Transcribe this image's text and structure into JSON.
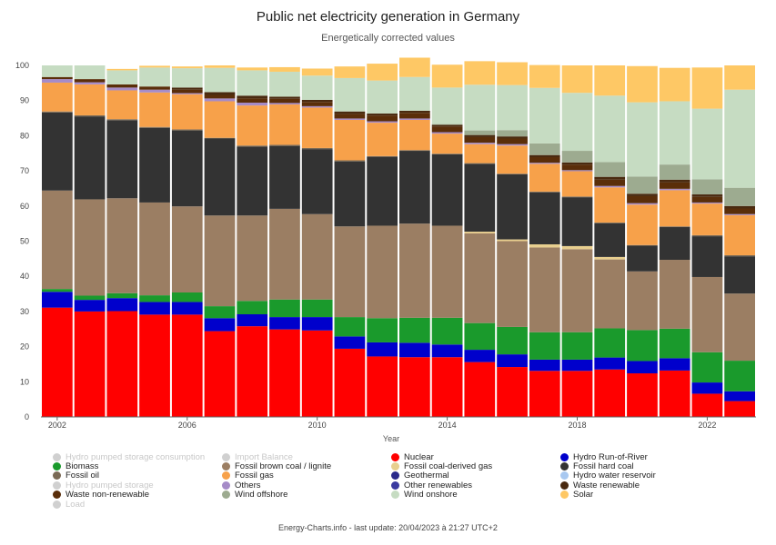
{
  "title": "Public net electricity generation in Germany",
  "subtitle": "Energetically corrected values",
  "footer": "Energy-Charts.info - last update: 20/04/2023 à 21:27 UTC+2",
  "chart_data": {
    "type": "bar",
    "stacked": true,
    "title": "Public net electricity generation in Germany",
    "subtitle": "Energetically corrected values",
    "xlabel": "Year",
    "ylabel": "",
    "ylim": [
      0,
      100
    ],
    "yticks": [
      0,
      10,
      20,
      30,
      40,
      50,
      60,
      70,
      80,
      90,
      100
    ],
    "grid": false,
    "legend_position": "bottom",
    "categories": [
      "2002",
      "2003",
      "2004",
      "2005",
      "2006",
      "2007",
      "2008",
      "2009",
      "2010",
      "2011",
      "2012",
      "2013",
      "2014",
      "2015",
      "2016",
      "2017",
      "2018",
      "2019",
      "2020",
      "2021",
      "2022",
      "2023"
    ],
    "xtick_labels": [
      "2002",
      "2006",
      "2010",
      "2014",
      "2018",
      "2022"
    ],
    "series": [
      {
        "name": "Nuclear",
        "color": "#ff0000",
        "values": [
          31.1,
          30.0,
          30.1,
          29.1,
          29.1,
          24.4,
          25.8,
          24.9,
          24.6,
          19.4,
          17.2,
          17.0,
          17.0,
          15.6,
          14.2,
          13.1,
          13.1,
          13.5,
          12.4,
          13.2,
          6.6,
          4.5
        ]
      },
      {
        "name": "Hydro Run-of-River",
        "color": "#0000cc",
        "values": [
          4.5,
          3.3,
          3.7,
          3.6,
          3.6,
          3.7,
          3.4,
          3.5,
          3.8,
          3.5,
          4.0,
          4.1,
          3.6,
          3.5,
          3.6,
          3.2,
          3.2,
          3.4,
          3.5,
          3.5,
          3.2,
          2.8
        ]
      },
      {
        "name": "Biomass",
        "color": "#1a9a2c",
        "values": [
          0.8,
          1.2,
          1.4,
          1.9,
          2.7,
          3.4,
          3.8,
          5.0,
          5.0,
          5.5,
          6.9,
          7.1,
          7.6,
          7.6,
          7.8,
          7.8,
          7.8,
          8.3,
          8.8,
          8.4,
          8.6,
          8.7
        ]
      },
      {
        "name": "Fossil brown coal / lignite",
        "color": "#9b7e63",
        "values": [
          28.0,
          27.4,
          27.0,
          26.4,
          24.5,
          25.8,
          24.3,
          25.8,
          24.3,
          25.8,
          26.3,
          26.8,
          26.2,
          25.5,
          24.4,
          24.1,
          23.6,
          19.6,
          16.7,
          19.6,
          21.4,
          19.1
        ]
      },
      {
        "name": "Fossil coal-derived gas",
        "color": "#e8cf8f",
        "values": [
          0,
          0,
          0,
          0,
          0,
          0,
          0,
          0,
          0,
          0,
          0,
          0,
          0,
          0.5,
          0.5,
          0.9,
          0.9,
          0.7,
          0,
          0,
          0,
          0
        ]
      },
      {
        "name": "Fossil hard coal",
        "color": "#333333",
        "values": [
          22.2,
          23.6,
          22.2,
          21.2,
          21.6,
          21.9,
          19.6,
          17.9,
          18.5,
          18.5,
          19.6,
          20.7,
          20.3,
          19.3,
          18.5,
          14.8,
          13.9,
          9.6,
          7.3,
          9.3,
          11.6,
          10.6
        ]
      },
      {
        "name": "Fossil oil",
        "color": "#7a6a55",
        "values": [
          0.3,
          0.3,
          0.3,
          0.3,
          0.3,
          0.2,
          0.3,
          0.3,
          0.3,
          0.3,
          0.2,
          0.2,
          0.2,
          0.2,
          0.2,
          0.2,
          0.2,
          0.2,
          0.2,
          0.2,
          0.3,
          0.3
        ]
      },
      {
        "name": "Fossil gas",
        "color": "#f7a14a",
        "values": [
          8.2,
          8.8,
          8.2,
          9.8,
          10.0,
          10.4,
          11.4,
          11.5,
          11.5,
          11.5,
          9.5,
          8.6,
          5.7,
          5.4,
          8.0,
          7.9,
          7.2,
          10.0,
          11.5,
          10.3,
          9.0,
          11.4
        ]
      },
      {
        "name": "Geothermal",
        "color": "#2a2a8a",
        "values": [
          0,
          0,
          0,
          0,
          0,
          0,
          0,
          0,
          0,
          0,
          0,
          0,
          0,
          0,
          0,
          0,
          0,
          0,
          0,
          0,
          0,
          0
        ]
      },
      {
        "name": "Others",
        "color": "#a58bc8",
        "values": [
          1.0,
          0.6,
          0.8,
          0.8,
          0.3,
          0.8,
          0.8,
          0.4,
          0.4,
          0.4,
          0.4,
          0.4,
          0.4,
          0.4,
          0.4,
          0.3,
          0.3,
          0.4,
          0.4,
          0.4,
          0.3,
          0.3
        ]
      },
      {
        "name": "Other renewables",
        "color": "#3a3aa0",
        "values": [
          0,
          0,
          0,
          0,
          0,
          0,
          0,
          0,
          0,
          0,
          0,
          0,
          0,
          0,
          0,
          0,
          0,
          0,
          0,
          0,
          0,
          0
        ]
      },
      {
        "name": "Waste non-renewable",
        "color": "#5a2e0a",
        "values": [
          0.6,
          0.9,
          0.9,
          0.9,
          1.0,
          1.0,
          1.2,
          1.2,
          1.2,
          1.3,
          1.6,
          1.6,
          1.6,
          1.6,
          1.6,
          1.6,
          1.6,
          1.8,
          2.0,
          1.8,
          1.6,
          1.6
        ]
      },
      {
        "name": "Waste renewable",
        "color": "#4a2a10",
        "values": [
          0,
          0,
          0,
          0,
          0.6,
          0.8,
          0.8,
          0.6,
          0.6,
          0.7,
          0.6,
          0.6,
          0.5,
          0.6,
          0.6,
          0.6,
          0.6,
          0.8,
          0.7,
          0.8,
          0.7,
          0.7
        ]
      },
      {
        "name": "Wind offshore",
        "color": "#9dab90",
        "values": [
          0,
          0,
          0,
          0,
          0,
          0,
          0,
          0,
          0,
          0,
          0,
          0,
          0.2,
          1.3,
          1.8,
          3.3,
          3.3,
          4.2,
          4.9,
          4.3,
          4.3,
          5.2
        ]
      },
      {
        "name": "Wind onshore",
        "color": "#c6dcc2",
        "values": [
          3.3,
          3.9,
          4.0,
          5.4,
          5.5,
          6.9,
          7.2,
          7.1,
          6.9,
          9.5,
          9.4,
          9.6,
          10.4,
          13.0,
          12.8,
          15.8,
          16.5,
          18.9,
          21.1,
          18.0,
          20.1,
          27.9
        ]
      },
      {
        "name": "Solar",
        "color": "#fec865",
        "values": [
          0,
          0,
          0.4,
          0.5,
          0.5,
          0.7,
          0.8,
          1.3,
          2.0,
          3.3,
          4.8,
          5.5,
          6.5,
          6.7,
          6.5,
          6.5,
          7.8,
          8.6,
          10.3,
          9.5,
          11.7,
          6.9
        ]
      }
    ],
    "legend": [
      {
        "name": "Hydro pumped storage consumption",
        "color": "#cccccc",
        "active": false
      },
      {
        "name": "Import Balance",
        "color": "#cccccc",
        "active": false
      },
      {
        "name": "Nuclear",
        "color": "#ff0000",
        "active": true
      },
      {
        "name": "Hydro Run-of-River",
        "color": "#0000cc",
        "active": true
      },
      {
        "name": "Biomass",
        "color": "#1a9a2c",
        "active": true
      },
      {
        "name": "Fossil brown coal / lignite",
        "color": "#9b7e63",
        "active": true
      },
      {
        "name": "Fossil coal-derived gas",
        "color": "#e8cf8f",
        "active": true
      },
      {
        "name": "Fossil hard coal",
        "color": "#333333",
        "active": true
      },
      {
        "name": "Fossil oil",
        "color": "#7a6a55",
        "active": true
      },
      {
        "name": "Fossil gas",
        "color": "#f7a14a",
        "active": true
      },
      {
        "name": "Geothermal",
        "color": "#2a2a8a",
        "active": true
      },
      {
        "name": "Hydro water reservoir",
        "color": "#a8c8f0",
        "active": true
      },
      {
        "name": "Hydro pumped storage",
        "color": "#cccccc",
        "active": false
      },
      {
        "name": "Others",
        "color": "#a58bc8",
        "active": true
      },
      {
        "name": "Other renewables",
        "color": "#3a3aa0",
        "active": true
      },
      {
        "name": "Waste renewable",
        "color": "#4a2a10",
        "active": true
      },
      {
        "name": "Waste non-renewable",
        "color": "#5a2e0a",
        "active": true
      },
      {
        "name": "Wind offshore",
        "color": "#9dab90",
        "active": true
      },
      {
        "name": "Wind onshore",
        "color": "#c6dcc2",
        "active": true
      },
      {
        "name": "Solar",
        "color": "#fec865",
        "active": true
      },
      {
        "name": "Load",
        "color": "#cccccc",
        "active": false
      }
    ]
  }
}
